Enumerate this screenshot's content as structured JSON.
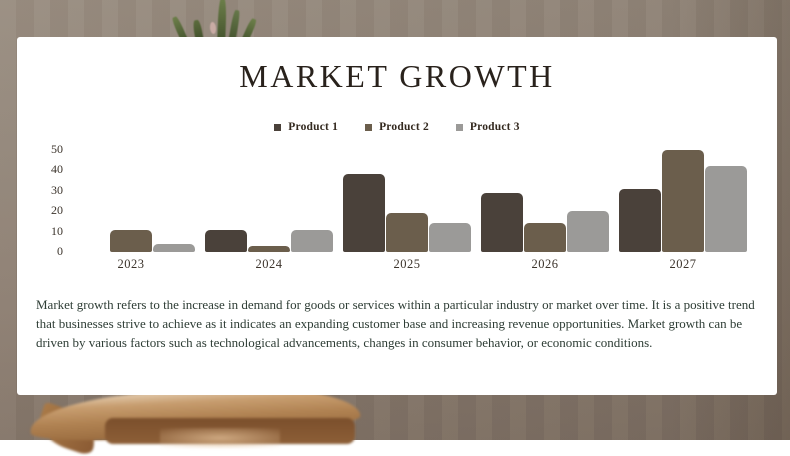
{
  "slide": {
    "title": "MARKET GROWTH",
    "description": "Market growth refers to the increase in demand for goods or services within a particular industry or market over time. It is a positive trend that businesses strive to achieve as it indicates an expanding customer base and increasing revenue opportunities. Market growth can be driven by various factors such as technological advancements, changes in consumer behavior, or economic conditions."
  },
  "chart_data": {
    "type": "bar",
    "title": "MARKET GROWTH",
    "categories": [
      "2023",
      "2024",
      "2025",
      "2026",
      "2027"
    ],
    "series": [
      {
        "name": "Product 1",
        "color": "#4a413a",
        "values": [
          0,
          11,
          38,
          29,
          31
        ]
      },
      {
        "name": "Product 2",
        "color": "#6b5e4c",
        "values": [
          11,
          3,
          19,
          14,
          50
        ]
      },
      {
        "name": "Product 3",
        "color": "#9b9a98",
        "values": [
          4,
          11,
          14,
          20,
          42
        ]
      }
    ],
    "xlabel": "",
    "ylabel": "",
    "ylim": [
      0,
      50
    ],
    "yticks": [
      0,
      10,
      20,
      30,
      40,
      50
    ],
    "grid": false,
    "legend_position": "top"
  },
  "colors": {
    "card_background": "#ffffff",
    "title_text": "#29221c",
    "axis_text": "#3b332b",
    "body_text": "#2e3d35",
    "photo_background": "#8e8073"
  }
}
